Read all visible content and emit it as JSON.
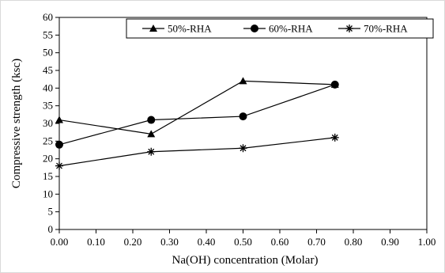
{
  "chart_data": {
    "type": "line",
    "title": "",
    "xlabel": "Na(OH) concentration (Molar)",
    "ylabel": "Compressive strength (ksc)",
    "xlim": [
      0,
      1
    ],
    "ylim": [
      0,
      60
    ],
    "x_ticks": [
      "0.00",
      "0.10",
      "0.20",
      "0.30",
      "0.40",
      "0.50",
      "0.60",
      "0.70",
      "0.80",
      "0.90",
      "1.00"
    ],
    "y_ticks": [
      "0",
      "5",
      "10",
      "15",
      "20",
      "25",
      "30",
      "35",
      "40",
      "45",
      "50",
      "55",
      "60"
    ],
    "grid": false,
    "legend_position": "top-right",
    "x": [
      0.0,
      0.25,
      0.5,
      0.75
    ],
    "series": [
      {
        "name": "50%-RHA",
        "marker": "triangle",
        "values": [
          31,
          27,
          42,
          41
        ]
      },
      {
        "name": "60%-RHA",
        "marker": "circle",
        "values": [
          24,
          31,
          32,
          41
        ]
      },
      {
        "name": "70%-RHA",
        "marker": "star",
        "values": [
          18,
          22,
          23,
          26
        ]
      }
    ]
  }
}
